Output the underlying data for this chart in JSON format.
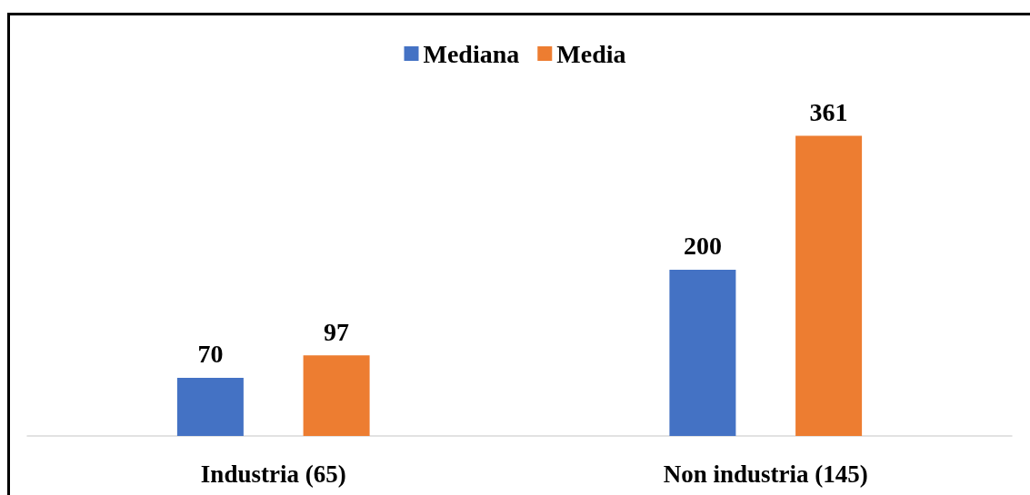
{
  "chart_data": {
    "type": "bar",
    "categories": [
      "Industria (65)",
      "Non industria (145)"
    ],
    "series": [
      {
        "name": "Mediana",
        "color": "#4472c4",
        "values": [
          70,
          200
        ]
      },
      {
        "name": "Media",
        "color": "#ed7d31",
        "values": [
          97,
          361
        ]
      }
    ],
    "data_labels": true,
    "legend": "top",
    "grid": false
  }
}
